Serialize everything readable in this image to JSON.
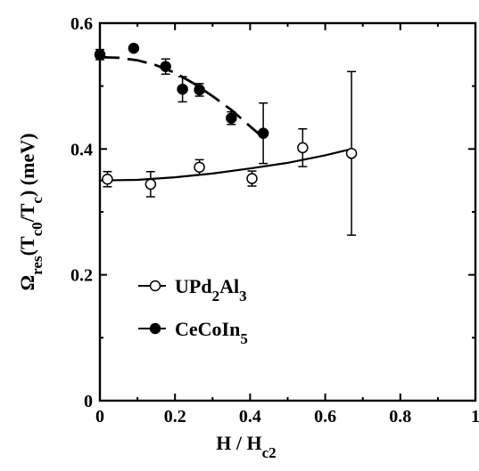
{
  "chart_data": {
    "type": "scatter",
    "title": "",
    "xlabel": {
      "main": "H / H",
      "sub": "c2"
    },
    "ylabel": {
      "parts": [
        {
          "text": "Ω",
          "sub": false
        },
        {
          "text": "res",
          "sub": true
        },
        {
          "text": "(T",
          "sub": false
        },
        {
          "text": "c0",
          "sub": true
        },
        {
          "text": "/T",
          "sub": false
        },
        {
          "text": "c",
          "sub": true
        },
        {
          "text": ") (meV)",
          "sub": false
        }
      ]
    },
    "xlim": [
      0,
      1
    ],
    "ylim": [
      0,
      0.6
    ],
    "xticks": [
      0,
      0.2,
      0.4,
      0.6,
      0.8,
      1
    ],
    "xtick_labels": [
      "0",
      "0.2",
      "0.4",
      "0.6",
      "0.8",
      "1"
    ],
    "yticks": [
      0,
      0.2,
      0.4,
      0.6
    ],
    "ytick_labels": [
      "0",
      "0.2",
      "0.4",
      "0.6"
    ],
    "grid": false,
    "legend_position": "lower-left",
    "series": [
      {
        "name": "UPd2Al3",
        "legend_parts": [
          {
            "text": "UPd",
            "sub": false
          },
          {
            "text": "2",
            "sub": true
          },
          {
            "text": "Al",
            "sub": false
          },
          {
            "text": "3",
            "sub": true
          }
        ],
        "marker": "open-circle",
        "x": [
          0.02,
          0.135,
          0.265,
          0.405,
          0.54,
          0.67
        ],
        "y": [
          0.352,
          0.344,
          0.371,
          0.353,
          0.402,
          0.393
        ],
        "yerr": [
          0.012,
          0.02,
          0.012,
          0.012,
          0.03,
          0.13
        ],
        "fit": {
          "style": "solid",
          "x": [
            0,
            0.1,
            0.2,
            0.3,
            0.4,
            0.5,
            0.6,
            0.67
          ],
          "y": [
            0.35,
            0.351,
            0.355,
            0.361,
            0.369,
            0.378,
            0.39,
            0.4
          ]
        }
      },
      {
        "name": "CeCoIn5",
        "legend_parts": [
          {
            "text": "CeCoIn",
            "sub": false
          },
          {
            "text": "5",
            "sub": true
          }
        ],
        "marker": "filled-circle",
        "x": [
          0.0,
          0.09,
          0.175,
          0.22,
          0.265,
          0.35,
          0.435
        ],
        "y": [
          0.55,
          0.56,
          0.531,
          0.495,
          0.494,
          0.449,
          0.425
        ],
        "yerr": [
          0.008,
          0.0,
          0.012,
          0.02,
          0.01,
          0.01,
          0.048
        ],
        "fit": {
          "style": "dashed",
          "x": [
            0,
            0.05,
            0.1,
            0.15,
            0.2,
            0.25,
            0.3,
            0.35,
            0.4,
            0.435
          ],
          "y": [
            0.546,
            0.545,
            0.541,
            0.533,
            0.521,
            0.504,
            0.484,
            0.462,
            0.436,
            0.418
          ]
        }
      }
    ]
  }
}
